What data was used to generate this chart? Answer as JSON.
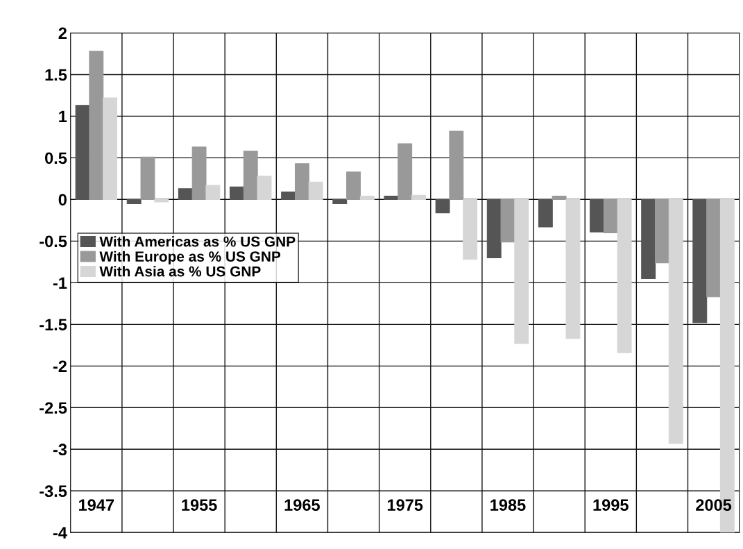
{
  "chart_data": {
    "type": "bar",
    "categories": [
      "1947",
      null,
      "1955",
      null,
      "1965",
      null,
      "1975",
      null,
      "1985",
      null,
      "1995",
      null,
      "2005"
    ],
    "series": [
      {
        "name": "With Americas as % US GNP",
        "color": "#555555",
        "values": [
          1.13,
          -0.05,
          0.13,
          0.15,
          0.09,
          -0.05,
          0.04,
          -0.16,
          -0.7,
          -0.33,
          -0.39,
          -0.95,
          -1.48
        ]
      },
      {
        "name": "With Europe as % US GNP",
        "color": "#999999",
        "values": [
          1.78,
          0.51,
          0.63,
          0.58,
          0.43,
          0.33,
          0.67,
          0.82,
          -0.51,
          0.04,
          -0.4,
          -0.76,
          -1.17
        ]
      },
      {
        "name": "With Asia as % US GNP",
        "color": "#d6d6d6",
        "values": [
          1.22,
          -0.03,
          0.17,
          0.28,
          0.21,
          0.04,
          0.05,
          -0.72,
          -1.73,
          -1.67,
          -1.84,
          -2.93,
          -4.0
        ]
      }
    ],
    "ylim": [
      -4,
      2
    ],
    "yticks": [
      {
        "value": -4,
        "label": "-4"
      },
      {
        "value": -3.5,
        "label": "-3.5"
      },
      {
        "value": -3,
        "label": "-3"
      },
      {
        "value": -2.5,
        "label": "-2.5"
      },
      {
        "value": -2,
        "label": "-2"
      },
      {
        "value": -1.5,
        "label": "-1.5"
      },
      {
        "value": -1,
        "label": "-1"
      },
      {
        "value": -0.5,
        "label": "-0.5"
      },
      0,
      0.5,
      1,
      1.5,
      2
    ],
    "grid": true,
    "legend": "center left"
  }
}
